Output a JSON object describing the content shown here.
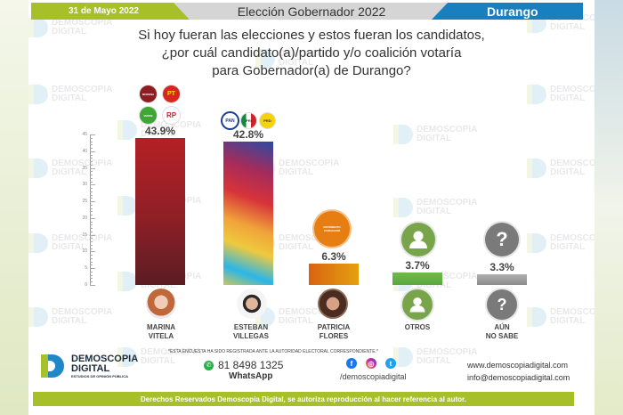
{
  "header": {
    "date": "31 de Mayo 2022",
    "title": "Elección Gobernador 2022",
    "state": "Durango"
  },
  "question": {
    "line1": "Si hoy fueran las elecciones y estos fueran los candidatos,",
    "line2": "¿por cuál candidato(a)/partido y/o coalición votaría",
    "line3": "para Gobernador(a) de Durango?"
  },
  "watermark": {
    "line1": "DEMOSCOPIA",
    "line2": "DIGITAL"
  },
  "colors": {
    "brand_green": "#a7c02a",
    "brand_blue": "#1a7fbf",
    "header_gray": "#d5d5d5",
    "morena_bar_top": "#b32025",
    "morena_bar_bottom": "#5a1d24",
    "mc_bar": "#e07f12",
    "otros_bar": "#5ca83e",
    "no_sabe_bar": "#8a8a8a"
  },
  "chart_data": {
    "type": "bar",
    "title": "¿por cuál candidato(a)/partido y/o coalición votaría para Gobernador(a) de Durango?",
    "xlabel": "",
    "ylabel": "",
    "ylim": [
      0,
      45
    ],
    "yticks": [
      0,
      5,
      10,
      15,
      20,
      25,
      30,
      35,
      40,
      45
    ],
    "grid": false,
    "categories": [
      "MARINA VITELA",
      "ESTEBAN VILLEGAS",
      "PATRICIA FLORES",
      "OTROS",
      "AÚN NO SABE"
    ],
    "values": [
      43.9,
      42.8,
      6.3,
      3.7,
      3.3
    ],
    "value_labels": [
      "43.9%",
      "42.8%",
      "6.3%",
      "3.7%",
      "3.3%"
    ],
    "parties": [
      [
        "MORENA",
        "PT",
        "VERDE",
        "RSP"
      ],
      [
        "PAN",
        "PRI",
        "PRD"
      ],
      [
        "MOVIMIENTO CIUDADANO"
      ],
      [],
      []
    ]
  },
  "candidates": [
    {
      "first": "MARINA",
      "last": "VITELA",
      "type": "photo"
    },
    {
      "first": "ESTEBAN",
      "last": "VILLEGAS",
      "type": "photo"
    },
    {
      "first": "PATRICIA",
      "last": "FLORES",
      "type": "photo"
    },
    {
      "first": "OTROS",
      "last": "",
      "type": "person-icon"
    },
    {
      "first": "AÚN",
      "last": "NO SABE",
      "type": "question-icon"
    }
  ],
  "party_logos": {
    "morena": "MORENA",
    "pt": "PT",
    "verde": "VERDE",
    "rsp": "RP",
    "pan": "PAN",
    "pri": "PRI",
    "prd": "PRD",
    "mc": "MOVIMIENTO CIUDADANO"
  },
  "footer": {
    "brand_line1": "DEMOSCOPIA",
    "brand_line2": "DIGITAL",
    "brand_tagline": "ESTUDIOS DE OPINIÓN PÚBLICA",
    "notice": "*ESTA ENCUESTA HA SIDO REGISTRADA ANTE LA AUTORIDAD ELECTORAL CORRESPONDIENTE.*",
    "whatsapp_number": "81 8498 1325",
    "whatsapp_label": "WhatsApp",
    "social_handle": "/demoscopiadigital",
    "website": "www.demoscopiadigital.com",
    "email": "info@demoscopiadigital.com",
    "copyright": "Derechos Reservados Demoscopia Digital, se autoriza reproducción al hacer referencia al autor."
  }
}
